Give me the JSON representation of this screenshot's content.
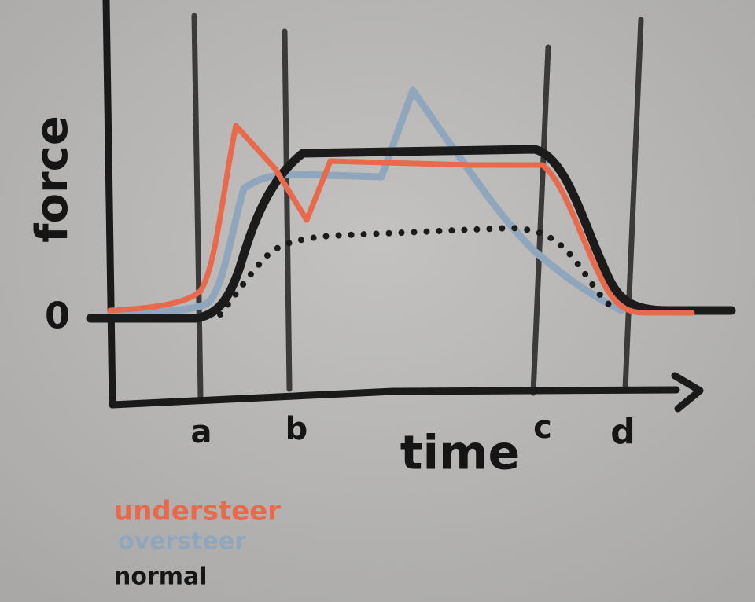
{
  "diagram": {
    "y_axis_label": "force",
    "zero_label": "0",
    "x_axis_label": "time",
    "markers": [
      "a",
      "b",
      "c",
      "d"
    ],
    "legend": [
      "understeer",
      "oversteer",
      "normal"
    ]
  }
}
